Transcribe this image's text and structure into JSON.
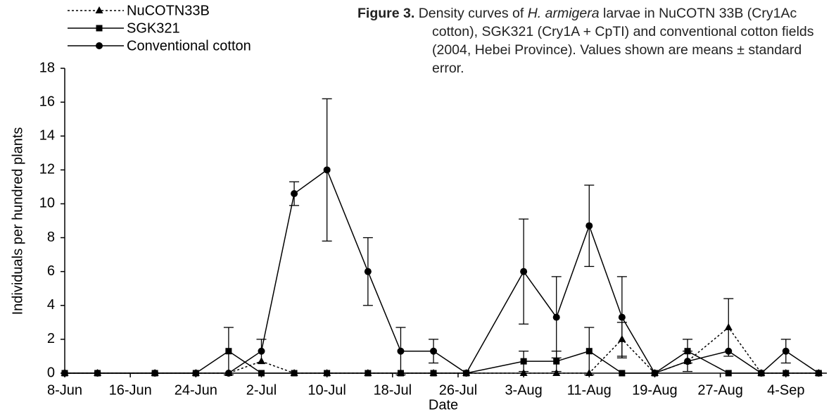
{
  "chart_data": {
    "type": "line",
    "caption_label": "Figure 3.",
    "caption_parts": [
      "Density curves of ",
      "H. armigera",
      " larvae in NuCOTN 33B (Cry1Ac cotton), SGK321 (Cry1A + CpTI) and conventional cotton fields (2004, Hebei Province). Values shown are means ± standard error."
    ],
    "x_label": "Date",
    "y_label": "Individuals per hundred plants",
    "x": [
      "8-Jun",
      "12-Jun",
      "19-Jun",
      "24-Jun",
      "28-Jun",
      "2-Jul",
      "6-Jul",
      "10-Jul",
      "15-Jul",
      "19-Jul",
      "23-Jul",
      "27-Jul",
      "3-Aug",
      "7-Aug",
      "11-Aug",
      "15-Aug",
      "19-Aug",
      "23-Aug",
      "28-Aug",
      "1-Sep",
      "4-Sep",
      "8-Sep"
    ],
    "xlim": [
      "8-Jun",
      "9-Sep"
    ],
    "xticks": [
      "8-Jun",
      "16-Jun",
      "24-Jun",
      "2-Jul",
      "10-Jul",
      "18-Jul",
      "26-Jul",
      "3-Aug",
      "11-Aug",
      "19-Aug",
      "27-Aug",
      "4-Sep"
    ],
    "ylim": [
      0,
      18
    ],
    "yticks": [
      0,
      2,
      4,
      6,
      8,
      10,
      12,
      14,
      16,
      18
    ],
    "legend": "top-left",
    "series": [
      {
        "name": "NuCOTN33B",
        "color": "#000000",
        "dash": "dotted",
        "marker": "triangle",
        "values": [
          0,
          0,
          0,
          0,
          0,
          0.7,
          0,
          0,
          0,
          0,
          0,
          0,
          0,
          0,
          0,
          2,
          0,
          0.7,
          2.7,
          0,
          0,
          0
        ],
        "errors": [
          null,
          null,
          null,
          null,
          null,
          null,
          null,
          null,
          null,
          null,
          null,
          null,
          null,
          null,
          null,
          1,
          null,
          null,
          1.7,
          null,
          null,
          null
        ]
      },
      {
        "name": "SGK321",
        "color": "#000000",
        "dash": "solid",
        "marker": "square",
        "values": [
          0,
          0,
          0,
          0,
          1.3,
          0,
          0,
          0,
          0,
          0,
          0,
          0,
          0.7,
          0.7,
          1.3,
          0,
          0,
          1.3,
          0,
          0,
          0,
          0
        ],
        "errors": [
          null,
          null,
          null,
          null,
          1.4,
          null,
          null,
          null,
          null,
          null,
          null,
          null,
          0.6,
          0.6,
          1.4,
          null,
          null,
          0.7,
          null,
          null,
          null,
          null
        ]
      },
      {
        "name": "Conventional cotton",
        "color": "#000000",
        "dash": "solid",
        "marker": "circle",
        "values": [
          0,
          0,
          0,
          0,
          0,
          1.3,
          10.6,
          12,
          6,
          1.3,
          1.3,
          0,
          6,
          3.3,
          8.7,
          3.3,
          0,
          0.7,
          1.3,
          0,
          1.3,
          0
        ],
        "errors": [
          null,
          null,
          null,
          null,
          null,
          0.7,
          0.7,
          4.2,
          2,
          1.4,
          0.7,
          null,
          3.1,
          2.4,
          2.4,
          2.4,
          null,
          0.6,
          null,
          null,
          0.7,
          null
        ]
      }
    ]
  }
}
